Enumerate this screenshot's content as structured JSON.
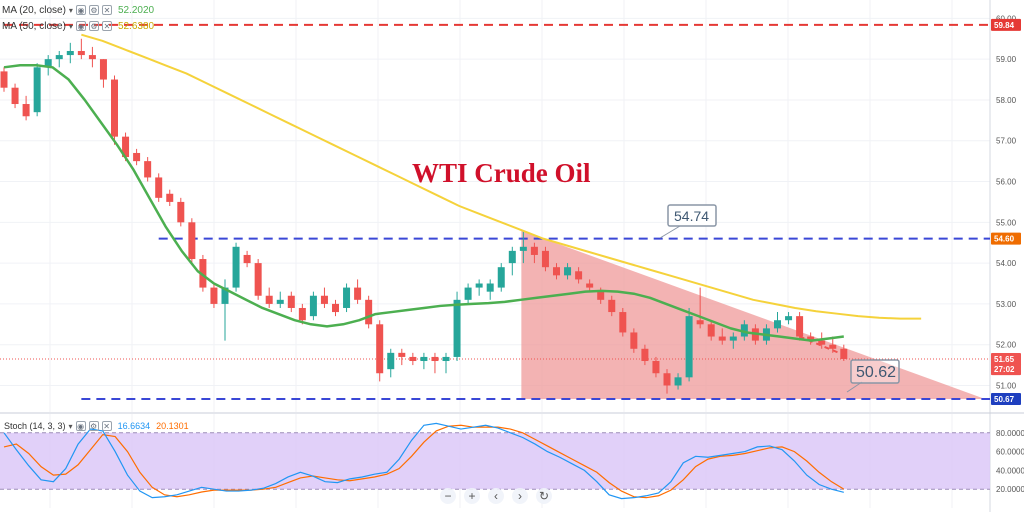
{
  "indicators": [
    {
      "label": "MA (20, close)",
      "value": "52.2020",
      "color": "#4caf50"
    },
    {
      "label": "MA (50, close)",
      "value": "52.6380",
      "color": "#f5d23b"
    }
  ],
  "title": "WTI Crude Oil",
  "stoch": {
    "label": "Stoch (14, 3, 3)",
    "k_value": "16.6634",
    "d_value": "20.1301",
    "k_color": "#2196f3",
    "d_color": "#ff6d00",
    "ticks": [
      "80.0000",
      "60.0000",
      "40.0000",
      "20.0000"
    ],
    "tick_values": [
      80,
      60,
      40,
      20
    ],
    "upper_band": 80,
    "lower_band": 20,
    "band_color": "#dcc8f8"
  },
  "price_axis": {
    "ticks": [
      "60.00",
      "59.00",
      "58.00",
      "57.00",
      "56.00",
      "55.00",
      "54.00",
      "53.00",
      "52.00",
      "51.00"
    ],
    "tick_values": [
      60,
      59,
      58,
      57,
      56,
      55,
      54,
      53,
      52,
      51
    ],
    "range": [
      50.35,
      60.45
    ]
  },
  "price_labels": [
    {
      "text": "59.84",
      "price": 59.84,
      "bg": "#e53935",
      "fg": "#ffffff"
    },
    {
      "text": "54.60",
      "price": 54.6,
      "bg": "#ef6c00",
      "fg": "#ffffff"
    },
    {
      "text": "51.65",
      "price": 51.65,
      "bg": "#ef5350",
      "fg": "#ffffff"
    },
    {
      "text": "27:02",
      "price": 51.4,
      "bg": "#ef5350",
      "fg": "#ffffff"
    },
    {
      "text": "50.67",
      "price": 50.67,
      "bg": "#1e3fbf",
      "fg": "#ffffff"
    }
  ],
  "callouts": [
    {
      "text": "54.74",
      "price": 54.74
    },
    {
      "text": "50.62",
      "price": 50.62
    }
  ],
  "levels": [
    {
      "price": 59.84,
      "color": "#e53935",
      "from_bar": 0
    },
    {
      "price": 54.6,
      "color": "#3a47d6",
      "from_bar": 14
    },
    {
      "price": 50.67,
      "color": "#3a47d6",
      "from_bar": 7
    }
  ],
  "colors": {
    "up": "#26a69a",
    "down": "#ef5350",
    "triangle": "#ef9a9a",
    "current_line": "#ef5350"
  },
  "chart_data": {
    "type": "candlestick",
    "title": "WTI Crude Oil",
    "series": [
      {
        "name": "WTI Crude Oil",
        "ohlc": [
          [
            58.7,
            58.8,
            58.2,
            58.3
          ],
          [
            58.3,
            58.4,
            57.8,
            57.9
          ],
          [
            57.9,
            58.1,
            57.5,
            57.6
          ],
          [
            57.7,
            58.9,
            57.6,
            58.8
          ],
          [
            58.8,
            59.1,
            58.6,
            59.0
          ],
          [
            59.0,
            59.2,
            58.8,
            59.1
          ],
          [
            59.1,
            59.4,
            58.9,
            59.2
          ],
          [
            59.2,
            59.5,
            59.0,
            59.1
          ],
          [
            59.1,
            59.3,
            58.8,
            59.0
          ],
          [
            59.0,
            59.0,
            58.3,
            58.5
          ],
          [
            58.5,
            58.6,
            56.9,
            57.1
          ],
          [
            57.1,
            57.2,
            56.5,
            56.6
          ],
          [
            56.7,
            56.8,
            56.4,
            56.5
          ],
          [
            56.5,
            56.6,
            56.0,
            56.1
          ],
          [
            56.1,
            56.2,
            55.5,
            55.6
          ],
          [
            55.7,
            55.8,
            55.4,
            55.5
          ],
          [
            55.5,
            55.6,
            54.9,
            55.0
          ],
          [
            55.0,
            55.1,
            54.0,
            54.1
          ],
          [
            54.1,
            54.2,
            53.3,
            53.4
          ],
          [
            53.4,
            53.5,
            52.9,
            53.0
          ],
          [
            53.0,
            53.6,
            52.1,
            53.4
          ],
          [
            53.4,
            54.5,
            53.3,
            54.4
          ],
          [
            54.2,
            54.3,
            53.9,
            54.0
          ],
          [
            54.0,
            54.1,
            53.1,
            53.2
          ],
          [
            53.2,
            53.4,
            52.9,
            53.0
          ],
          [
            53.0,
            53.3,
            52.9,
            53.1
          ],
          [
            53.2,
            53.3,
            52.8,
            52.9
          ],
          [
            52.9,
            53.0,
            52.5,
            52.6
          ],
          [
            52.7,
            53.3,
            52.6,
            53.2
          ],
          [
            53.2,
            53.4,
            52.9,
            53.0
          ],
          [
            53.0,
            53.1,
            52.7,
            52.8
          ],
          [
            52.9,
            53.5,
            52.8,
            53.4
          ],
          [
            53.4,
            53.6,
            53.0,
            53.1
          ],
          [
            53.1,
            53.2,
            52.4,
            52.5
          ],
          [
            52.5,
            52.6,
            51.1,
            51.3
          ],
          [
            51.4,
            51.9,
            51.2,
            51.8
          ],
          [
            51.8,
            51.9,
            51.5,
            51.7
          ],
          [
            51.7,
            51.8,
            51.5,
            51.6
          ],
          [
            51.6,
            51.8,
            51.4,
            51.7
          ],
          [
            51.7,
            51.8,
            51.3,
            51.6
          ],
          [
            51.6,
            51.8,
            51.3,
            51.7
          ],
          [
            51.7,
            53.3,
            51.6,
            53.1
          ],
          [
            53.1,
            53.5,
            53.0,
            53.4
          ],
          [
            53.4,
            53.6,
            53.2,
            53.5
          ],
          [
            53.3,
            53.6,
            53.1,
            53.5
          ],
          [
            53.4,
            54.0,
            53.3,
            53.9
          ],
          [
            54.0,
            54.4,
            53.7,
            54.3
          ],
          [
            54.3,
            54.8,
            54.0,
            54.4
          ],
          [
            54.4,
            54.5,
            54.0,
            54.2
          ],
          [
            54.3,
            54.4,
            53.8,
            53.9
          ],
          [
            53.9,
            54.0,
            53.6,
            53.7
          ],
          [
            53.7,
            54.0,
            53.6,
            53.9
          ],
          [
            53.8,
            53.9,
            53.5,
            53.6
          ],
          [
            53.5,
            53.6,
            53.3,
            53.4
          ],
          [
            53.3,
            53.4,
            53.0,
            53.1
          ],
          [
            53.1,
            53.2,
            52.7,
            52.8
          ],
          [
            52.8,
            52.9,
            52.2,
            52.3
          ],
          [
            52.3,
            52.4,
            51.8,
            51.9
          ],
          [
            51.9,
            52.0,
            51.5,
            51.6
          ],
          [
            51.6,
            51.7,
            51.2,
            51.3
          ],
          [
            51.3,
            51.4,
            50.8,
            51.0
          ],
          [
            51.0,
            51.3,
            50.9,
            51.2
          ],
          [
            51.2,
            52.9,
            51.1,
            52.7
          ],
          [
            52.6,
            53.4,
            52.4,
            52.5
          ],
          [
            52.5,
            52.6,
            52.1,
            52.2
          ],
          [
            52.2,
            52.4,
            52.0,
            52.1
          ],
          [
            52.1,
            52.3,
            51.9,
            52.2
          ],
          [
            52.2,
            52.6,
            52.1,
            52.5
          ],
          [
            52.4,
            52.5,
            52.0,
            52.1
          ],
          [
            52.1,
            52.5,
            52.0,
            52.4
          ],
          [
            52.4,
            52.8,
            52.3,
            52.6
          ],
          [
            52.6,
            52.8,
            52.5,
            52.7
          ],
          [
            52.7,
            52.8,
            52.1,
            52.2
          ],
          [
            52.2,
            52.3,
            52.0,
            52.1
          ],
          [
            52.1,
            52.3,
            51.9,
            52.0
          ],
          [
            52.0,
            52.2,
            51.8,
            51.9
          ],
          [
            51.9,
            52.0,
            51.6,
            51.65
          ]
        ]
      },
      {
        "name": "MA (20, close)",
        "values": [
          58.8,
          58.85,
          58.85,
          58.8,
          58.5,
          58.0,
          57.45,
          56.9,
          56.3,
          55.6,
          54.9,
          54.3,
          53.8,
          53.5,
          53.3,
          53.1,
          52.9,
          52.75,
          52.6,
          52.5,
          52.45,
          52.5,
          52.6,
          52.75,
          52.8,
          52.85,
          52.9,
          52.95,
          52.98,
          53.0,
          53.02,
          53.05,
          53.1,
          53.15,
          53.2,
          53.25,
          53.3,
          53.32,
          53.3,
          53.25,
          53.15,
          53.0,
          52.85,
          52.7,
          52.55,
          52.4,
          52.3,
          52.25,
          52.2,
          52.15,
          52.1,
          52.15,
          52.2
        ],
        "x_start": 0
      },
      {
        "name": "MA (50, close)",
        "values": [
          59.6,
          59.45,
          59.25,
          59.05,
          58.85,
          58.65,
          58.4,
          58.15,
          57.9,
          57.65,
          57.4,
          57.15,
          56.9,
          56.65,
          56.4,
          56.15,
          55.9,
          55.65,
          55.4,
          55.2,
          55.0,
          54.8,
          54.6,
          54.45,
          54.3,
          54.15,
          54.0,
          53.85,
          53.7,
          53.55,
          53.4,
          53.25,
          53.1,
          53.0,
          52.9,
          52.82,
          52.76,
          52.7,
          52.66,
          52.64,
          52.64
        ],
        "x_start": 7
      }
    ],
    "stoch_k": [
      80,
      62,
      45,
      30,
      28,
      42,
      68,
      84,
      82,
      60,
      35,
      18,
      11,
      12,
      14,
      18,
      22,
      20,
      18,
      18,
      19,
      21,
      26,
      33,
      38,
      34,
      28,
      27,
      31,
      33,
      36,
      38,
      52,
      72,
      88,
      90,
      87,
      84,
      86,
      88,
      85,
      80,
      75,
      68,
      60,
      54,
      47,
      40,
      28,
      14,
      10,
      11,
      13,
      16,
      28,
      48,
      55,
      54,
      56,
      58,
      60,
      65,
      66,
      62,
      50,
      35,
      25,
      20,
      16.66
    ],
    "stoch_d": [
      65,
      68,
      58,
      44,
      35,
      36,
      46,
      62,
      78,
      76,
      60,
      38,
      22,
      14,
      12,
      14,
      17,
      19,
      19,
      19,
      19,
      20,
      22,
      27,
      32,
      34,
      32,
      30,
      29,
      31,
      33,
      36,
      42,
      55,
      70,
      82,
      87,
      88,
      86,
      86,
      86,
      84,
      80,
      73,
      66,
      59,
      52,
      45,
      38,
      27,
      18,
      12,
      11,
      13,
      19,
      30,
      44,
      52,
      55,
      56,
      58,
      61,
      64,
      65,
      60,
      50,
      38,
      28,
      20.13
    ],
    "y_range": [
      50.35,
      60.45
    ],
    "stoch_range": [
      0,
      100
    ],
    "triangle": {
      "start_bar": 47,
      "top_price": 54.8,
      "bottom_price": 50.67
    },
    "legend_position": "top-left",
    "grid": true
  },
  "nav": {
    "zoom_out": "−",
    "zoom_in": "+",
    "prev": "‹",
    "next": "›",
    "reset": "↻"
  }
}
